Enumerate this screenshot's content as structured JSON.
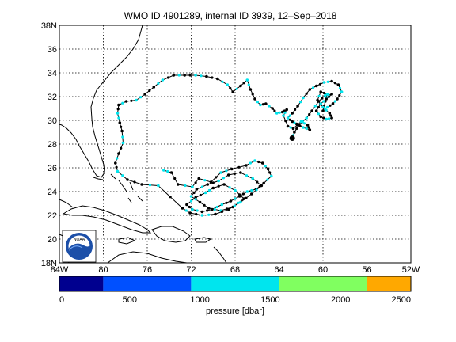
{
  "title": "WMO ID 4901289, internal ID 3939, 12–Sep–2018",
  "map": {
    "lon_range": [
      84,
      52
    ],
    "lat_range": [
      18,
      38
    ],
    "lon_ticks": [
      "84W",
      "80",
      "76",
      "72",
      "68",
      "64",
      "60",
      "56",
      "52W"
    ],
    "lat_ticks": [
      "38N",
      "36",
      "34",
      "32",
      "30",
      "28",
      "26",
      "24",
      "22",
      "20",
      "18N"
    ],
    "grid": true,
    "logo": "noaa-logo",
    "logo_text": "NOAA",
    "land_color": "#000000",
    "track_color": "#000000",
    "point_colors": [
      "#000000",
      "#00e5ee"
    ],
    "last_position": [
      62.8,
      28.5
    ]
  },
  "colorbar": {
    "label": "pressure [dbar]",
    "tick_labels": [
      "0",
      "500",
      "1000",
      "1500",
      "2000",
      "2500"
    ],
    "range": [
      0,
      2500
    ],
    "bins": [
      {
        "from": 0,
        "to": 312,
        "color": "#00008f"
      },
      {
        "from": 312,
        "to": 937,
        "color": "#0050ff"
      },
      {
        "from": 937,
        "to": 1562,
        "color": "#00e5ee"
      },
      {
        "from": 1562,
        "to": 2187,
        "color": "#80ff60"
      },
      {
        "from": 2187,
        "to": 2500,
        "color": "#ffa800"
      }
    ]
  }
}
